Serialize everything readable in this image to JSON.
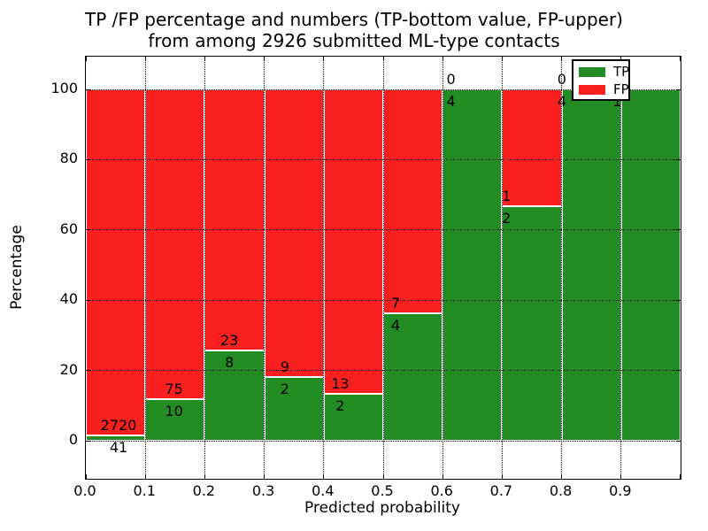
{
  "title": {
    "line1": "TP /FP percentage and numbers (TP-bottom value, FP-upper)",
    "line2": "from among 2926 submitted ML-type contacts"
  },
  "axes": {
    "xlabel": "Predicted probability",
    "ylabel": "Percentage",
    "x_tick_labels": [
      "0.0",
      "0.1",
      "0.2",
      "0.3",
      "0.4",
      "0.5",
      "0.6",
      "0.7",
      "0.8",
      "0.9"
    ],
    "y_tick_labels": [
      "0",
      "20",
      "40",
      "60",
      "80",
      "100"
    ]
  },
  "legend": {
    "items": [
      {
        "label": "TP",
        "color": "#228b22"
      },
      {
        "label": "FP",
        "color": "#fa2020"
      }
    ]
  },
  "chart_data": {
    "type": "bar",
    "stacked": true,
    "normalized": "percent",
    "title": "TP /FP percentage and numbers (TP-bottom value, FP-upper)\nfrom among 2926 submitted ML-type contacts",
    "xlabel": "Predicted probability",
    "ylabel": "Percentage",
    "categories": [
      "0.0-0.1",
      "0.1-0.2",
      "0.2-0.3",
      "0.3-0.4",
      "0.4-0.5",
      "0.5-0.6",
      "0.6-0.7",
      "0.7-0.8",
      "0.8-0.9",
      "0.9-1.0"
    ],
    "series": [
      {
        "name": "TP",
        "color": "#228b22",
        "counts": [
          41,
          10,
          8,
          2,
          2,
          4,
          4,
          2,
          4,
          1
        ]
      },
      {
        "name": "FP",
        "color": "#fa2020",
        "counts": [
          2720,
          75,
          23,
          9,
          13,
          7,
          0,
          1,
          0,
          0
        ]
      }
    ],
    "tp_percent": [
      1.5,
      11.8,
      25.8,
      18.2,
      13.3,
      36.4,
      100.0,
      66.7,
      100.0,
      100.0
    ],
    "total_contacts": 2926,
    "x_ticks": [
      0.0,
      0.1,
      0.2,
      0.3,
      0.4,
      0.5,
      0.6,
      0.7,
      0.8,
      0.9
    ],
    "y_ticks": [
      0,
      20,
      40,
      60,
      80,
      100
    ],
    "ylim": [
      -10.8,
      109.3
    ],
    "grid": "dotted",
    "legend_position": "upper right inset"
  }
}
